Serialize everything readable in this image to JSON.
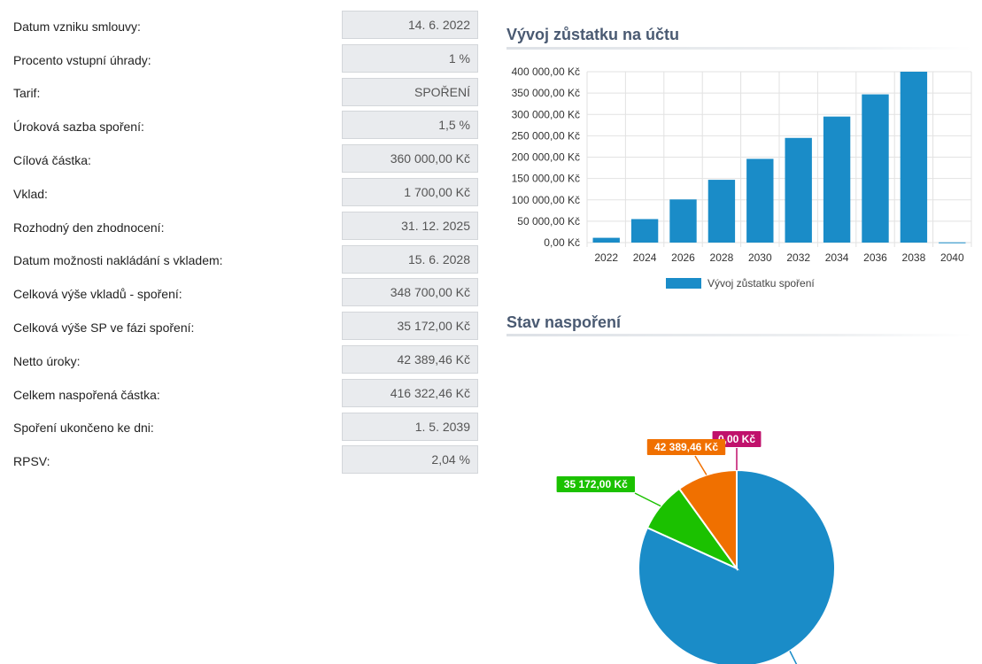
{
  "fields": [
    {
      "label": "Datum vzniku smlouvy:",
      "value": "14. 6. 2022"
    },
    {
      "label": "Procento vstupní úhrady:",
      "value": "1 %"
    },
    {
      "label": "Tarif:",
      "value": "SPOŘENÍ"
    },
    {
      "label": "Úroková sazba spoření:",
      "value": "1,5 %"
    },
    {
      "label": "Cílová částka:",
      "value": "360 000,00 Kč"
    },
    {
      "label": "Vklad:",
      "value": "1 700,00 Kč"
    },
    {
      "label": "Rozhodný den zhodnocení:",
      "value": "31. 12. 2025"
    },
    {
      "label": "Datum možnosti nakládání s vkladem:",
      "value": "15. 6. 2028"
    },
    {
      "label": "Celková výše vkladů - spoření:",
      "value": "348 700,00 Kč"
    },
    {
      "label": "Celková výše SP ve fázi spoření:",
      "value": "35 172,00 Kč"
    },
    {
      "label": "Netto úroky:",
      "value": "42 389,46 Kč"
    },
    {
      "label": "Celkem naspořená částka:",
      "value": "416 322,46 Kč"
    },
    {
      "label": "Spoření ukončeno ke dni:",
      "value": "1. 5. 2039"
    },
    {
      "label": "RPSV:",
      "value": "2,04 %"
    }
  ],
  "bar_section": {
    "title": "Vývoj zůstatku na účtu"
  },
  "pie_section": {
    "title": "Stav naspoření"
  },
  "chart_data": [
    {
      "type": "bar",
      "title": "Vývoj zůstatku na účtu",
      "categories": [
        "2022",
        "2024",
        "2026",
        "2028",
        "2030",
        "2032",
        "2034",
        "2036",
        "2038",
        "2040"
      ],
      "series": [
        {
          "name": "Vývoj zůstatku spoření",
          "color": "#1a8cc8",
          "values": [
            11200,
            55000,
            101000,
            147000,
            196000,
            245000,
            295000,
            347000,
            400000,
            500
          ]
        }
      ],
      "ylim": [
        0,
        400000
      ],
      "yticks": [
        0,
        50000,
        100000,
        150000,
        200000,
        250000,
        300000,
        350000,
        400000
      ],
      "ytick_labels": [
        "0,00 Kč",
        "50 000,00 Kč",
        "100 000,00 Kč",
        "150 000,00 Kč",
        "200 000,00 Kč",
        "250 000,00 Kč",
        "300 000,00 Kč",
        "350 000,00 Kč",
        "400 000,00 Kč"
      ],
      "legend": "bottom",
      "grid": true
    },
    {
      "type": "pie",
      "title": "Stav naspoření",
      "slices": [
        {
          "value": 348700.0,
          "label": "",
          "color": "#1a8cc8"
        },
        {
          "value": 0.0,
          "label": "0,00 Kč",
          "color": "#c0116b"
        },
        {
          "value": 42389.46,
          "label": "42 389,46 Kč",
          "color": "#f07000"
        },
        {
          "value": 35172.0,
          "label": "35 172,00 Kč",
          "color": "#1bc100"
        }
      ]
    }
  ]
}
